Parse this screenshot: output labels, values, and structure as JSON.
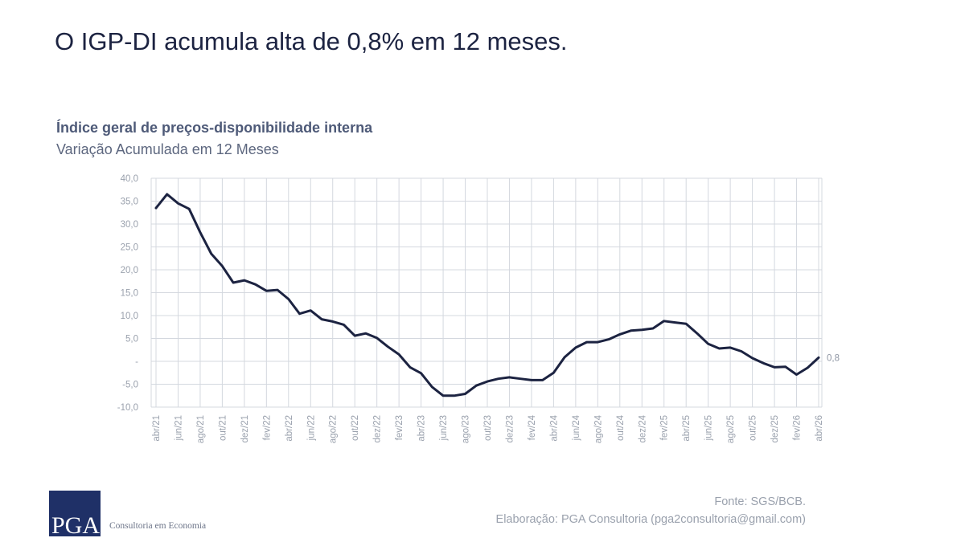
{
  "header": {
    "title": "O IGP-DI acumula alta de 0,8% em 12 meses."
  },
  "footer": {
    "source": "Fonte: SGS/BCB.",
    "credit": "Elaboração: PGA Consultoria (pga2consultoria@gmail.com)",
    "logo_text": "PGA",
    "logo_tagline": "Consultoria em Economia",
    "brand_color": "#1f3067"
  },
  "chart_data": {
    "type": "line",
    "title": "Índice geral de preços-disponibilidade interna",
    "subtitle": "Variação Acumulada em 12 Meses",
    "line_color": "#1c2341",
    "grid": true,
    "ylim": [
      -10,
      40
    ],
    "yticks": [
      {
        "value": 40,
        "label": "40,0"
      },
      {
        "value": 35,
        "label": "35,0"
      },
      {
        "value": 30,
        "label": "30,0"
      },
      {
        "value": 25,
        "label": "25,0"
      },
      {
        "value": 20,
        "label": "20,0"
      },
      {
        "value": 15,
        "label": "15,0"
      },
      {
        "value": 10,
        "label": "10,0"
      },
      {
        "value": 5,
        "label": "5,0"
      },
      {
        "value": 0,
        "label": "-"
      },
      {
        "value": -5,
        "label": "-5,0"
      },
      {
        "value": -10,
        "label": "-10,0"
      }
    ],
    "x_tick_labels": [
      "abr/21",
      "jun/21",
      "ago/21",
      "out/21",
      "dez/21",
      "fev/22",
      "abr/22",
      "jun/22",
      "ago/22",
      "out/22",
      "dez/22",
      "fev/23",
      "abr/23",
      "jun/23",
      "ago/23",
      "out/23",
      "dez/23",
      "fev/24",
      "abr/24",
      "jun/24",
      "ago/24",
      "out/24",
      "dez/24",
      "fev/25",
      "abr/25",
      "jun/25",
      "ago/25",
      "out/25",
      "dez/25",
      "fev/26",
      "abr/26"
    ],
    "last_value_label": "0,8",
    "values": [
      33.5,
      36.5,
      34.5,
      33.3,
      28.2,
      23.5,
      20.8,
      17.2,
      17.7,
      16.8,
      15.4,
      15.6,
      13.6,
      10.4,
      11.1,
      9.2,
      8.7,
      8.0,
      5.6,
      6.1,
      5.1,
      3.2,
      1.5,
      -1.3,
      -2.6,
      -5.6,
      -7.5,
      -7.5,
      -7.1,
      -5.3,
      -4.4,
      -3.8,
      -3.5,
      -3.8,
      -4.1,
      -4.1,
      -2.5,
      0.9,
      3.0,
      4.2,
      4.2,
      4.8,
      5.9,
      6.7,
      6.9,
      7.2,
      8.8,
      8.5,
      8.2,
      6.1,
      3.8,
      2.8,
      3.0,
      2.2,
      0.7,
      -0.4,
      -1.3,
      -1.2,
      -2.9,
      -1.4,
      0.8
    ]
  }
}
